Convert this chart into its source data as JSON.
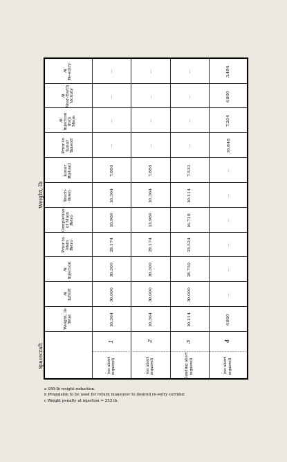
{
  "bg_color": "#ede9e2",
  "table_bg": "#ffffff",
  "border_color": "#222222",
  "row_headers": [
    "At\nRe-entry",
    "At\nNear-Earth\nVicinity",
    "At\nInjection\nfrom\nMoon",
    "Prior to\nLunar\nTakeoff",
    "Lunar\nPayload",
    "Touch-\ndown",
    "Completion\nof Main\nRetro",
    "Prior to\nMain\nRetro",
    "At\nInjection",
    "At\nLiftoff",
    "Weight, lb\nTotal"
  ],
  "spacecraft_label": "Spacecraft",
  "weight_lb_label": "Weight, lb",
  "spacecraft_numbers": [
    "1",
    "2",
    "3",
    "4"
  ],
  "spacecraft_subtitles": [
    "",
    "(no abort\nrequired)",
    "",
    "(no abort\nrequired)",
    "",
    "(landing abort\nrequired)",
    "",
    "(no abort\nrequired)"
  ],
  "col_data": [
    [
      "...",
      "...",
      "...",
      "...",
      "7,884",
      "10,364",
      "10,966",
      "29,174",
      "30,300",
      "30,000",
      "10,364"
    ],
    [
      "...",
      "...",
      "...",
      "...",
      "7,884",
      "10,364",
      "13,966",
      "29,174",
      "30,300",
      "30,000",
      "10,364"
    ],
    [
      "...",
      "...",
      "...",
      "...",
      "7,533",
      "10,114",
      "16,718",
      "23,524",
      "28,750",
      "30,000",
      "10,114"
    ],
    [
      "3,484",
      "6,800",
      "7,204",
      "10,848",
      "...",
      "...",
      "...",
      "...",
      "...",
      "...",
      "6,800"
    ]
  ],
  "footnotes": [
    "a 180-lb weight reduction.",
    "b Propulsion to be used for return maneuver to desired re-entry corridor.",
    "c Weight penalty at injection = 253 lb."
  ]
}
